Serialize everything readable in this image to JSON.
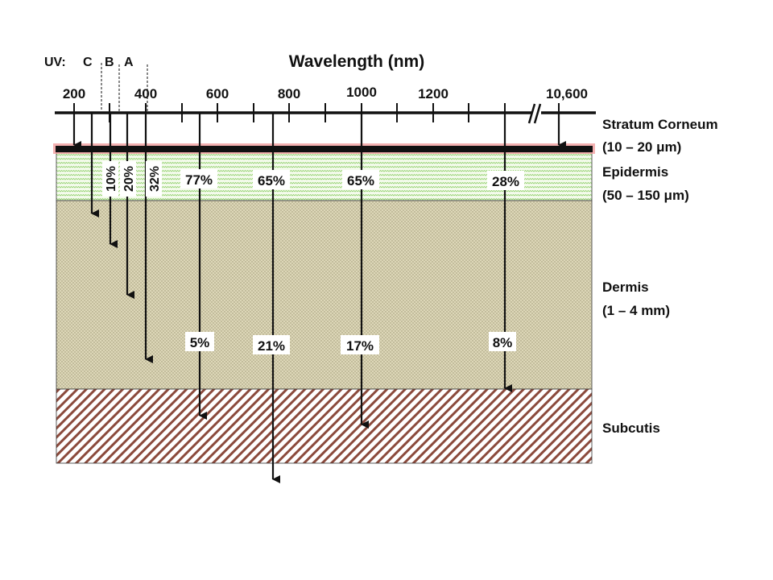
{
  "title": "Wavelength (nm)",
  "uv": {
    "prefix": "UV:",
    "c": "C",
    "b": "B",
    "a": "A"
  },
  "ticks": [
    "200",
    "400",
    "600",
    "800",
    "1000",
    "1200",
    "10,600"
  ],
  "layers": {
    "stratum_corneum": {
      "name": "Stratum Corneum",
      "depth": "(10 – 20 μm)"
    },
    "epidermis": {
      "name": "Epidermis",
      "depth": "(50 – 150 μm)"
    },
    "dermis": {
      "name": "Dermis",
      "depth": "(1 – 4 mm)"
    },
    "subcutis": {
      "name": "Subcutis"
    }
  },
  "percentages": {
    "uvb_epidermis": "10%",
    "uva_short_epidermis": "20%",
    "uva_long_epidermis": "32%",
    "visible_600_epidermis": "77%",
    "nir_800_epidermis": "65%",
    "nir_1000_epidermis": "65%",
    "ir_epidermis": "28%",
    "visible_600_dermis": "5%",
    "nir_800_dermis": "21%",
    "nir_1000_dermis": "17%",
    "ir_dermis": "8%"
  },
  "colors": {
    "stratum_glow": "#f2a3a3",
    "epidermis_pattern": "#8fcf6a",
    "dermis_fill": "#d8d2b0",
    "dermis_pattern": "#a09c78",
    "subcutis_pattern": "#8b4a3c",
    "line": "#111111"
  }
}
